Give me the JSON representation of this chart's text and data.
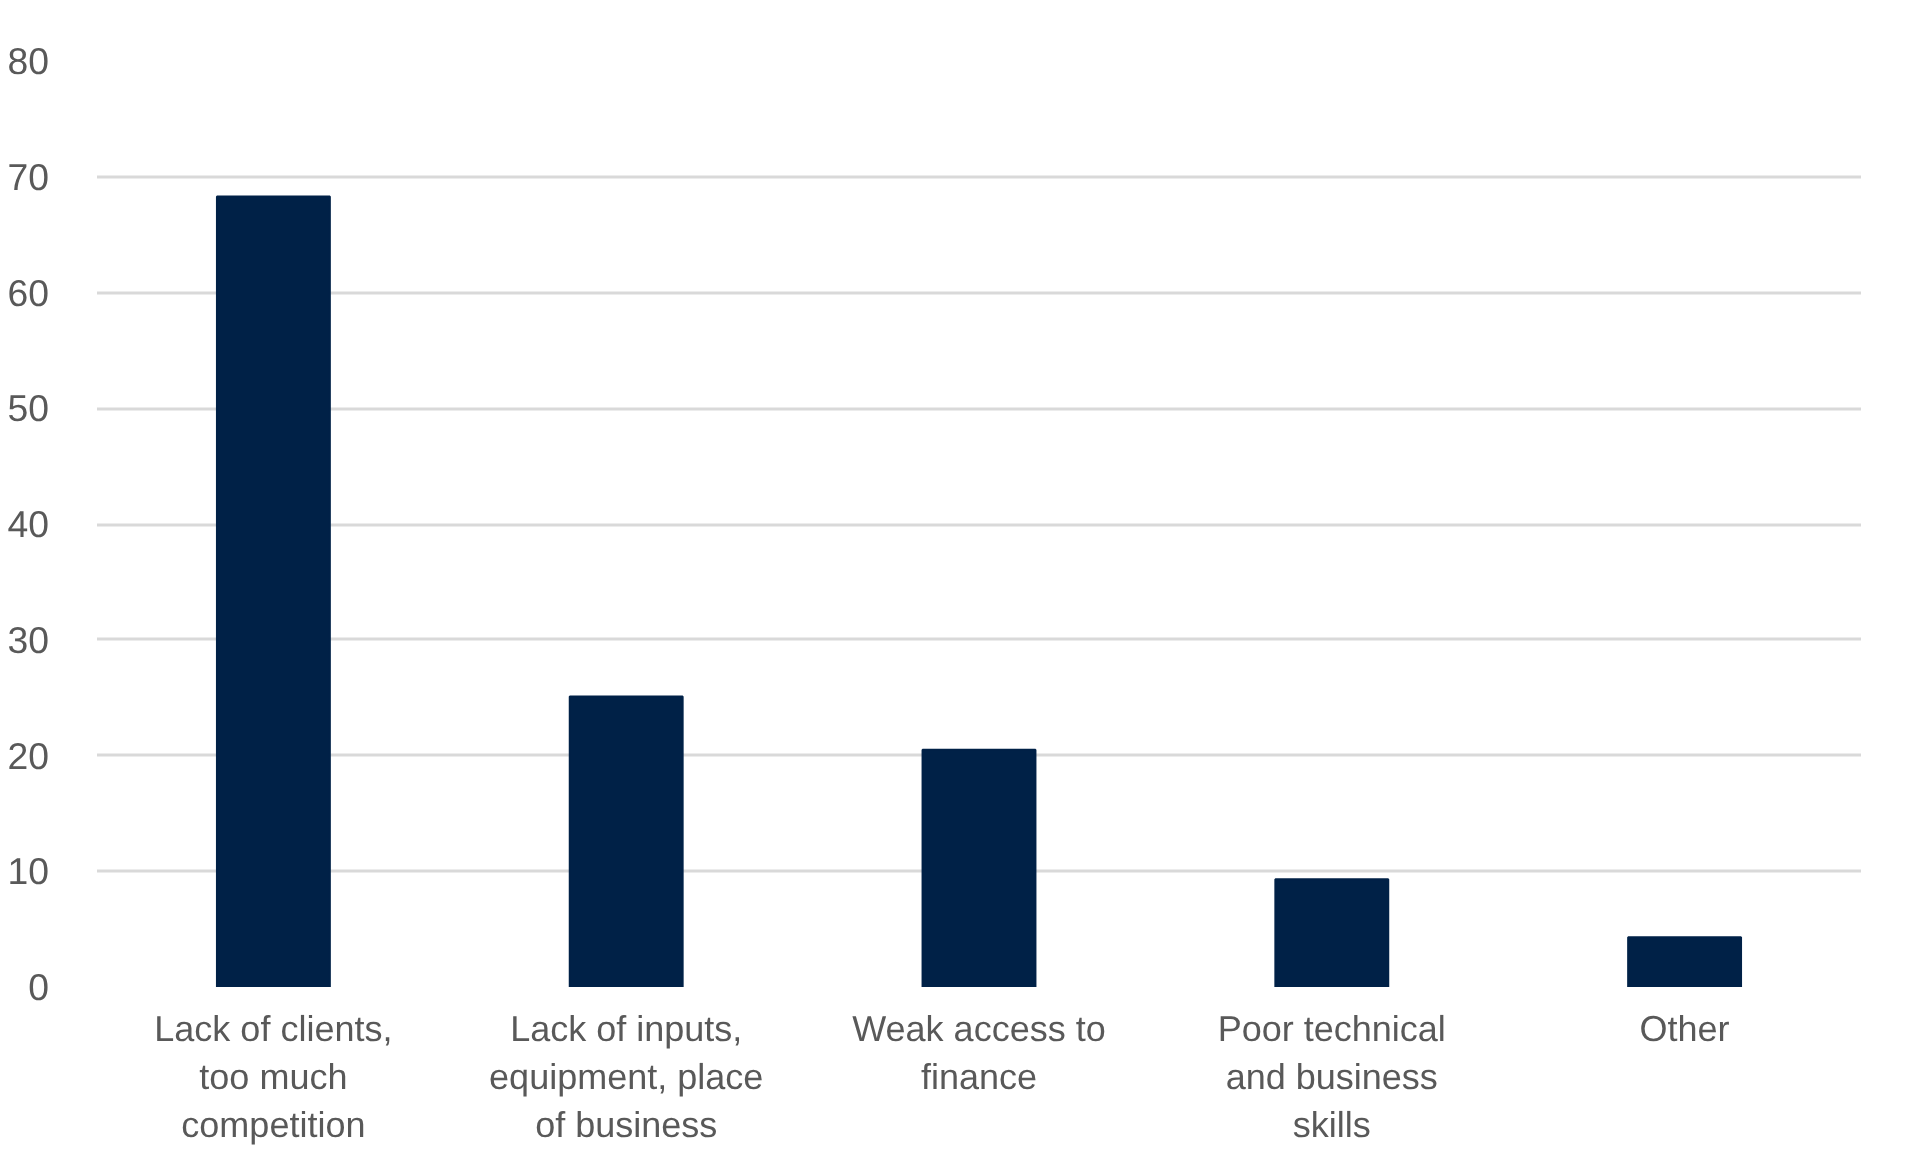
{
  "chart_data": {
    "type": "bar",
    "categories": [
      "Lack of clients,\ntoo much\ncompetition",
      "Lack of inputs,\nequipment, place\nof business",
      "Weak access to\nfinance",
      "Poor technical\nand business\nskills",
      "Other"
    ],
    "values": [
      68.3,
      25.1,
      20.5,
      9.3,
      4.3
    ],
    "color": "#002147",
    "ylim": [
      0,
      80
    ],
    "yticks": [
      0,
      10,
      20,
      30,
      40,
      50,
      60,
      70,
      80
    ],
    "grid": "y"
  }
}
